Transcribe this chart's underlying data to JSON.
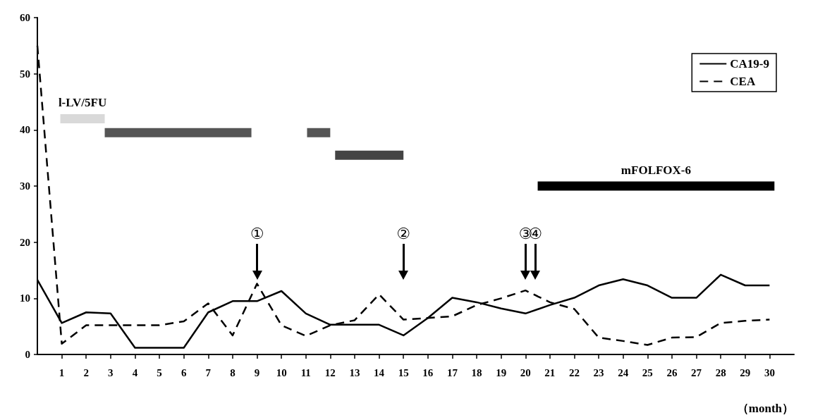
{
  "chart_data": {
    "type": "line",
    "xlabel": "（month）",
    "x": [
      0,
      1,
      2,
      3,
      4,
      5,
      6,
      7,
      8,
      9,
      10,
      11,
      12,
      13,
      14,
      15,
      16,
      17,
      18,
      19,
      20,
      21,
      22,
      23,
      24,
      25,
      26,
      27,
      28,
      29,
      30
    ],
    "xlim": [
      0,
      31
    ],
    "xticks": [
      1,
      2,
      3,
      4,
      5,
      6,
      7,
      8,
      9,
      10,
      11,
      12,
      13,
      14,
      15,
      16,
      17,
      18,
      19,
      20,
      21,
      22,
      23,
      24,
      25,
      26,
      27,
      28,
      29,
      30
    ],
    "ylim": [
      0,
      60
    ],
    "yticks": [
      0,
      10,
      20,
      30,
      40,
      50,
      60
    ],
    "grid": false,
    "legend": "top right",
    "marker": "none",
    "series": [
      {
        "name": "CA19-9",
        "color": "#000000",
        "line_style": "solid",
        "values": [
          13.3,
          5.6,
          7.5,
          7.3,
          1.2,
          1.2,
          1.2,
          7.5,
          9.5,
          9.5,
          11.3,
          7.3,
          5.3,
          5.3,
          5.3,
          3.4,
          6.5,
          10.1,
          9.3,
          8.2,
          7.3,
          8.8,
          10.1,
          12.3,
          13.4,
          12.3,
          10.1,
          10.1,
          14.2,
          12.3,
          12.3
        ]
      },
      {
        "name": "CEA",
        "color": "#000000",
        "line_style": "dashed",
        "values": [
          55,
          1.9,
          5.2,
          5.2,
          5.2,
          5.2,
          5.9,
          9.1,
          3.4,
          12.6,
          5.2,
          3.3,
          5.2,
          6.1,
          10.7,
          6.2,
          6.5,
          6.8,
          8.8,
          10,
          11.4,
          9.3,
          8.1,
          3,
          2.4,
          1.7,
          3,
          3.1,
          5.6,
          6,
          6.2
        ]
      },
      {
        "name": "l-LV/5FU",
        "color": "#d9d9d9",
        "x": [
          0.94,
          2.76
        ],
        "values": [
          42,
          42
        ]
      },
      {
        "color": "#555555",
        "x": [
          2.76,
          8.77
        ],
        "values": [
          39.5,
          39.5
        ]
      },
      {
        "color": "#555555",
        "x": [
          11.05,
          12
        ],
        "values": [
          39.5,
          39.5
        ]
      },
      {
        "color": "#444444",
        "x": [
          12.2,
          15
        ],
        "values": [
          35.5,
          35.5
        ]
      },
      {
        "name": "mFOLFOX-6",
        "color": "#000000",
        "x": [
          20.5,
          30.2
        ],
        "values": [
          30,
          30
        ]
      }
    ],
    "ref_lines": [
      {
        "axis": "x",
        "value": 9,
        "label": "①"
      },
      {
        "axis": "x",
        "value": 15,
        "label": "②"
      },
      {
        "axis": "x",
        "value": 20,
        "label": "③"
      },
      {
        "axis": "x",
        "value": 20.4,
        "label": "④"
      }
    ]
  }
}
